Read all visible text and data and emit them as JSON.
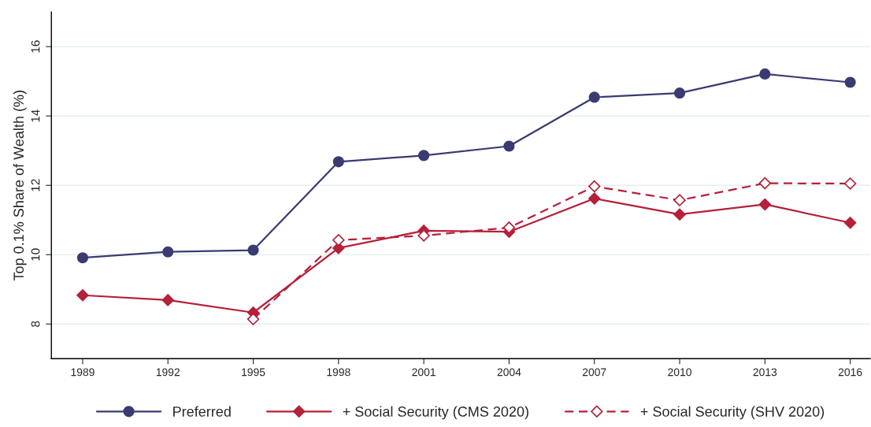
{
  "chart_data": {
    "type": "line",
    "ylabel": "Top 0.1% Share of Wealth (%)",
    "x": [
      1989,
      1992,
      1995,
      1998,
      2001,
      2004,
      2007,
      2010,
      2013,
      2016
    ],
    "xlim": [
      1987.9,
      2016.7
    ],
    "xticks": [
      1989,
      1992,
      1995,
      1998,
      2001,
      2004,
      2007,
      2010,
      2013,
      2016
    ],
    "ylim": [
      7,
      17
    ],
    "yticks": [
      8,
      10,
      12,
      14,
      16
    ],
    "grid": "y",
    "legend": "bottom",
    "series": [
      {
        "name": "Preferred",
        "color": "#3a3b72",
        "marker": "circle",
        "line_style": "solid",
        "values": [
          9.91,
          10.08,
          10.13,
          12.68,
          12.86,
          13.13,
          14.54,
          14.66,
          15.21,
          14.97
        ]
      },
      {
        "name": "+ Social Security (CMS 2020)",
        "color": "#b5203a",
        "marker": "diamond",
        "line_style": "solid",
        "values": [
          8.83,
          8.69,
          8.33,
          10.19,
          10.69,
          10.66,
          11.62,
          11.16,
          11.45,
          10.92
        ]
      },
      {
        "name": "+ Social Security (SHV 2020)",
        "color": "#b5203a",
        "marker": "diamond",
        "line_style": "dashed",
        "values": [
          null,
          null,
          8.14,
          10.42,
          10.55,
          10.78,
          11.97,
          11.57,
          12.06,
          12.05
        ]
      }
    ]
  }
}
